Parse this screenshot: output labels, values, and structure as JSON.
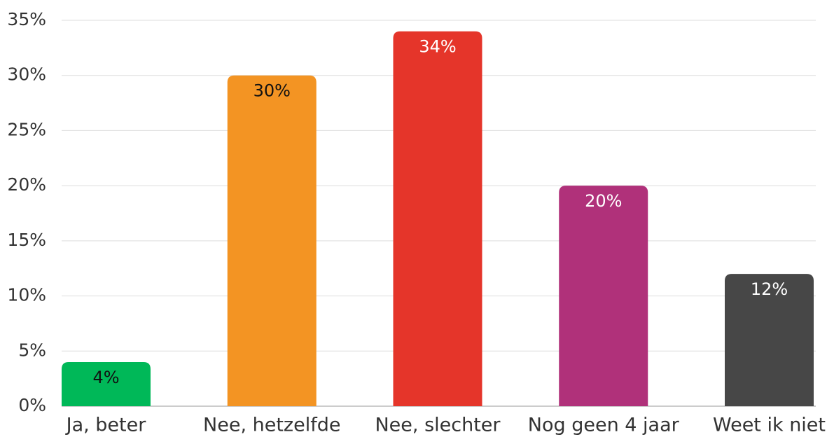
{
  "chart_data": {
    "type": "bar",
    "categories": [
      "Ja, beter",
      "Nee, hetzelfde",
      "Nee, slechter",
      "Nog geen 4 jaar",
      "Weet ik niet"
    ],
    "values": [
      4,
      30,
      34,
      20,
      12
    ],
    "value_labels": [
      "4%",
      "30%",
      "34%",
      "20%",
      "12%"
    ],
    "colors": [
      "#00b858",
      "#f39423",
      "#e5352a",
      "#b0317a",
      "#474747"
    ],
    "value_label_colors": [
      "#111111",
      "#111111",
      "#ffffff",
      "#ffffff",
      "#ffffff"
    ],
    "ylim": [
      0,
      35
    ],
    "yticks": [
      {
        "value": 0,
        "label": "0%"
      },
      {
        "value": 5,
        "label": "5%"
      },
      {
        "value": 10,
        "label": "10%"
      },
      {
        "value": 15,
        "label": "15%"
      },
      {
        "value": 20,
        "label": "20%"
      },
      {
        "value": 25,
        "label": "25%"
      },
      {
        "value": 30,
        "label": "30%"
      },
      {
        "value": 35,
        "label": "35%"
      }
    ],
    "grid": true
  }
}
